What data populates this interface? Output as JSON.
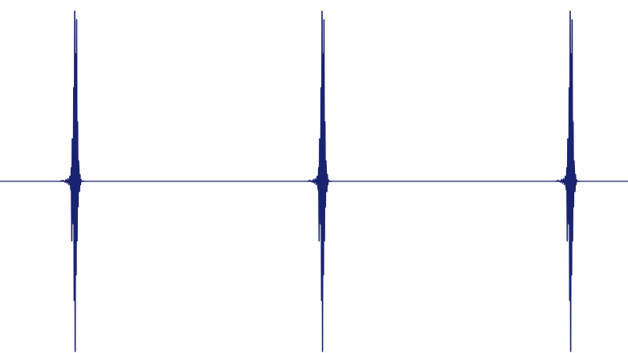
{
  "chart_data": {
    "type": "line",
    "title": "",
    "xlabel": "",
    "ylabel": "",
    "xlim": [
      0,
      782
    ],
    "ylim": [
      -1,
      1
    ],
    "grid": false,
    "legend": "none",
    "baseline": 0,
    "series_color": "#1a2370",
    "pulse_centers_x": [
      93,
      401,
      710
    ],
    "pulse_shape": {
      "offsets": [
        -30,
        -24,
        -20,
        -18,
        -16,
        -14,
        -12,
        -10,
        -8,
        -7,
        -6,
        -5,
        -4,
        -3,
        -2,
        -1,
        0,
        1,
        2,
        3,
        4,
        5,
        6,
        7,
        8,
        9,
        10,
        11,
        12,
        13,
        14,
        15,
        16,
        18,
        20
      ],
      "values": [
        0,
        0.005,
        -0.005,
        0.01,
        -0.01,
        0.015,
        -0.02,
        0.03,
        -0.05,
        0.08,
        -0.35,
        0.25,
        0.15,
        -0.25,
        0.55,
        -0.7,
        1.0,
        -1.0,
        0.75,
        -0.55,
        0.95,
        -0.35,
        0.35,
        -0.15,
        0.12,
        0.05,
        -0.06,
        0.04,
        -0.02,
        0.01,
        0,
        0,
        0,
        0,
        0
      ]
    }
  }
}
